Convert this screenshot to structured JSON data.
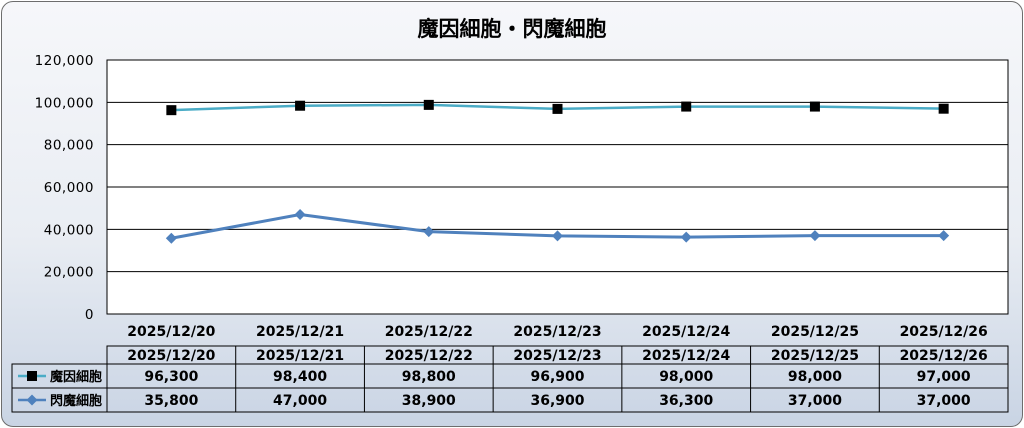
{
  "chart_data": {
    "type": "line",
    "title": "魔因細胞・閃魔細胞",
    "categories": [
      "2025/12/20",
      "2025/12/21",
      "2025/12/22",
      "2025/12/23",
      "2025/12/24",
      "2025/12/25",
      "2025/12/26"
    ],
    "ylim": [
      0,
      120000
    ],
    "yticks": [
      0,
      20000,
      40000,
      60000,
      80000,
      100000,
      120000
    ],
    "ytick_labels": [
      "0",
      "20,000",
      "40,000",
      "60,000",
      "80,000",
      "100,000",
      "120,000"
    ],
    "grid": true,
    "series": [
      {
        "name": "魔因細胞",
        "marker": "square",
        "line_color": "#4bacc6",
        "marker_color": "#000000",
        "values": [
          96300,
          98400,
          98800,
          96900,
          98000,
          98000,
          97000
        ],
        "value_labels": [
          "96,300",
          "98,400",
          "98,800",
          "96,900",
          "98,000",
          "98,000",
          "97,000"
        ]
      },
      {
        "name": "閃魔細胞",
        "marker": "diamond",
        "line_color": "#4f81bd",
        "marker_color": "#4f81bd",
        "values": [
          35800,
          47000,
          38900,
          36900,
          36300,
          37000,
          37000
        ],
        "value_labels": [
          "35,800",
          "47,000",
          "38,900",
          "36,900",
          "36,300",
          "37,000",
          "37,000"
        ]
      }
    ],
    "data_table": true
  }
}
